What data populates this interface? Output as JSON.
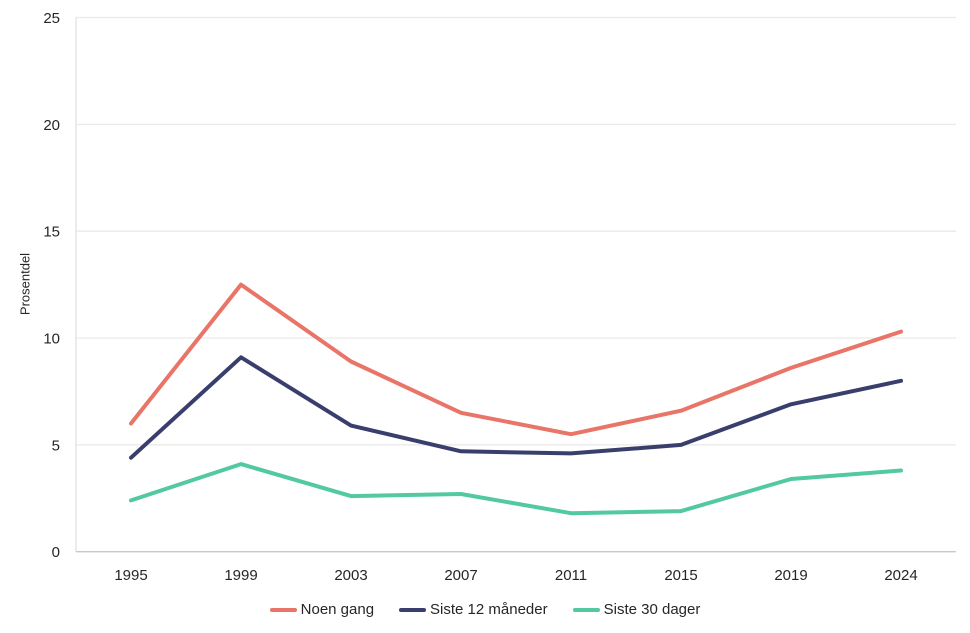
{
  "chart_data": {
    "type": "line",
    "title": "",
    "xlabel": "",
    "ylabel": "Prosentdel",
    "categories": [
      "1995",
      "1999",
      "2003",
      "2007",
      "2011",
      "2015",
      "2019",
      "2024"
    ],
    "ylim": [
      0,
      25
    ],
    "yticks": [
      0,
      5,
      10,
      15,
      20,
      25
    ],
    "grid": "horizontal",
    "legend_position": "bottom",
    "series": [
      {
        "name": "Noen gang",
        "color": "#E97468",
        "values": [
          6.0,
          12.5,
          8.9,
          6.5,
          5.5,
          6.6,
          8.6,
          10.3
        ]
      },
      {
        "name": "Siste 12 måneder",
        "color": "#3A3E6D",
        "values": [
          4.4,
          9.1,
          5.9,
          4.7,
          4.6,
          5.0,
          6.9,
          8.0
        ]
      },
      {
        "name": "Siste 30 dager",
        "color": "#52C9A2",
        "values": [
          2.4,
          4.1,
          2.6,
          2.7,
          1.8,
          1.9,
          3.4,
          3.8
        ]
      }
    ],
    "colors": {
      "grid": "#E9E9E9",
      "spine": "#E2E2E2",
      "axis": "#C9C9C9",
      "text": "#262626",
      "background": "#FFFFFF"
    }
  }
}
